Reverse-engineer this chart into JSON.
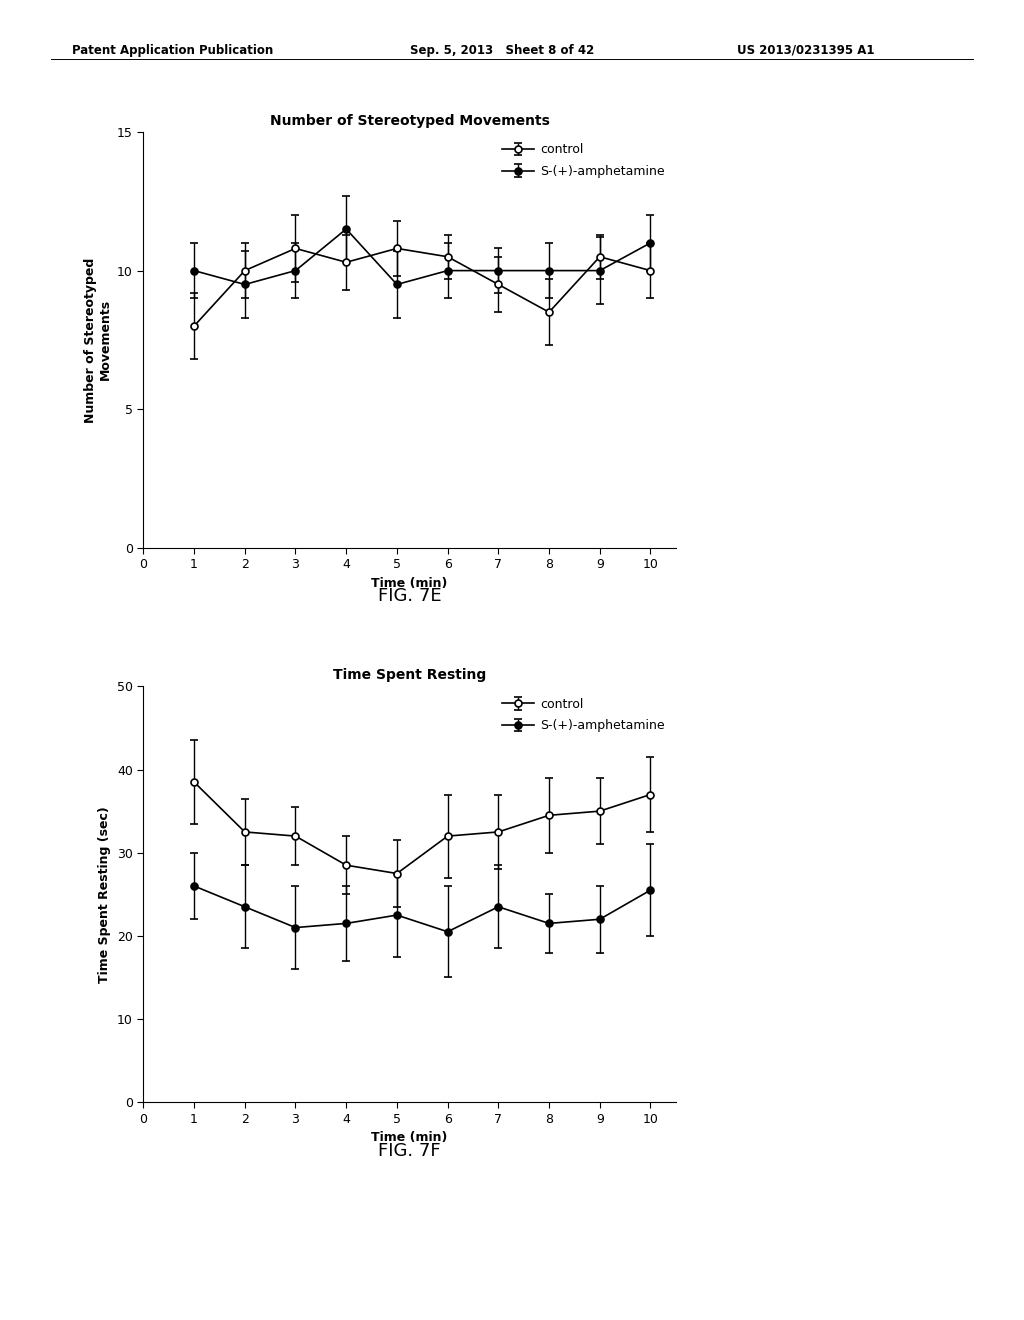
{
  "header_left": "Patent Application Publication",
  "header_mid": "Sep. 5, 2013   Sheet 8 of 42",
  "header_right": "US 2013/0231395 A1",
  "fig7e": {
    "title": "Number of Stereotyped Movements",
    "xlabel": "Time (min)",
    "ylabel": "Number of Stereotyped\nMovements",
    "xlim": [
      0,
      10.5
    ],
    "ylim": [
      0,
      15
    ],
    "xticks": [
      0,
      1,
      2,
      3,
      4,
      5,
      6,
      7,
      8,
      9,
      10
    ],
    "yticks": [
      0,
      5,
      10,
      15
    ],
    "time": [
      1,
      2,
      3,
      4,
      5,
      6,
      7,
      8,
      9,
      10
    ],
    "control_mean": [
      8.0,
      10.0,
      10.8,
      10.3,
      10.8,
      10.5,
      9.5,
      8.5,
      10.5,
      10.0
    ],
    "control_err": [
      1.2,
      1.0,
      1.2,
      1.0,
      1.0,
      0.8,
      1.0,
      1.2,
      0.8,
      1.0
    ],
    "amphet_mean": [
      10.0,
      9.5,
      10.0,
      11.5,
      9.5,
      10.0,
      10.0,
      10.0,
      10.0,
      11.0
    ],
    "amphet_err": [
      1.0,
      1.2,
      1.0,
      1.2,
      1.2,
      1.0,
      0.8,
      1.0,
      1.2,
      1.0
    ],
    "fig_label": "FIG. 7E"
  },
  "fig7f": {
    "title": "Time Spent Resting",
    "xlabel": "Time (min)",
    "ylabel": "Time Spent Resting (sec)",
    "xlim": [
      0,
      10.5
    ],
    "ylim": [
      0,
      50
    ],
    "xticks": [
      0,
      1,
      2,
      3,
      4,
      5,
      6,
      7,
      8,
      9,
      10
    ],
    "yticks": [
      0,
      10,
      20,
      30,
      40,
      50
    ],
    "time": [
      1,
      2,
      3,
      4,
      5,
      6,
      7,
      8,
      9,
      10
    ],
    "control_mean": [
      38.5,
      32.5,
      32.0,
      28.5,
      27.5,
      32.0,
      32.5,
      34.5,
      35.0,
      37.0
    ],
    "control_err": [
      5.0,
      4.0,
      3.5,
      3.5,
      4.0,
      5.0,
      4.5,
      4.5,
      4.0,
      4.5
    ],
    "amphet_mean": [
      26.0,
      23.5,
      21.0,
      21.5,
      22.5,
      20.5,
      23.5,
      21.5,
      22.0,
      25.5
    ],
    "amphet_err": [
      4.0,
      5.0,
      5.0,
      4.5,
      5.0,
      5.5,
      5.0,
      3.5,
      4.0,
      5.5
    ],
    "fig_label": "FIG. 7F"
  },
  "line_color": "#000000",
  "control_marker": "o",
  "amphet_marker": "o",
  "control_markerfacecolor": "#ffffff",
  "amphet_markerfacecolor": "#000000",
  "markersize": 5,
  "linewidth": 1.2,
  "capsize": 3,
  "elinewidth": 1.0,
  "legend_control": "control",
  "legend_amphet": "S-(+)-amphetamine",
  "background_color": "#ffffff",
  "font_family": "Arial"
}
